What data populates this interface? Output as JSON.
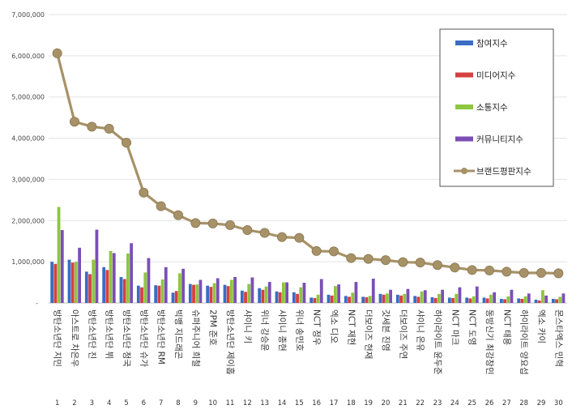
{
  "chart_data": {
    "type": "bar",
    "ylim": [
      0,
      7000000
    ],
    "y_ticks": [
      "-",
      "1,000,000",
      "2,000,000",
      "3,000,000",
      "4,000,000",
      "5,000,000",
      "6,000,000",
      "7,000,000"
    ],
    "grid": true,
    "legend_position": "top-right",
    "ranks": [
      "1",
      "2",
      "3",
      "4",
      "5",
      "6",
      "7",
      "8",
      "9",
      "10",
      "11",
      "12",
      "13",
      "14",
      "15",
      "16",
      "17",
      "18",
      "19",
      "20",
      "21",
      "22",
      "23",
      "24",
      "25",
      "26",
      "27",
      "28",
      "29",
      "30"
    ],
    "categories": [
      "방탄소년단 지민",
      "아스트로 차은우",
      "방탄소년단 진",
      "방탄소년단 뷔",
      "방탄소년단 정국",
      "방탄소년단 슈가",
      "방탄소년단 RM",
      "빅뱅 지드래곤",
      "슈퍼주니어 희철",
      "2PM 준호",
      "방탄소년단 제이홉",
      "샤이니 키",
      "위너 강승윤",
      "샤이니 종현",
      "위너 송민호",
      "NCT 정우",
      "엑소 디오",
      "NCT 재현",
      "더보이즈 현재",
      "갓세븐 진영",
      "더보이즈 주연",
      "샤이니 온유",
      "하이라이트 윤두준",
      "NCT 마크",
      "NCT 도영",
      "동방신기 최강창민",
      "NCT 태용",
      "하이라이트 양요섭",
      "엑소 카이",
      "몬스타엑스 민혁"
    ],
    "series": [
      {
        "name": "참여지수",
        "kind": "bar",
        "color": "#3a6cc4",
        "values": [
          1000000,
          1050000,
          760000,
          870000,
          630000,
          420000,
          430000,
          250000,
          460000,
          420000,
          440000,
          300000,
          360000,
          280000,
          260000,
          130000,
          200000,
          170000,
          150000,
          220000,
          200000,
          170000,
          140000,
          130000,
          130000,
          130000,
          100000,
          110000,
          80000,
          100000
        ]
      },
      {
        "name": "미디어지수",
        "kind": "bar",
        "color": "#d64040",
        "values": [
          950000,
          980000,
          700000,
          800000,
          580000,
          380000,
          420000,
          290000,
          440000,
          390000,
          410000,
          270000,
          320000,
          260000,
          220000,
          120000,
          180000,
          150000,
          140000,
          200000,
          180000,
          150000,
          120000,
          120000,
          110000,
          110000,
          90000,
          100000,
          60000,
          90000
        ]
      },
      {
        "name": "소통지수",
        "kind": "bar",
        "color": "#8dc63f",
        "values": [
          2330000,
          1000000,
          1050000,
          1260000,
          1200000,
          740000,
          570000,
          720000,
          450000,
          480000,
          560000,
          460000,
          400000,
          500000,
          380000,
          200000,
          410000,
          250000,
          170000,
          230000,
          220000,
          280000,
          220000,
          220000,
          160000,
          200000,
          160000,
          160000,
          310000,
          150000
        ]
      },
      {
        "name": "커뮤니티지수",
        "kind": "bar",
        "color": "#7b4fb5",
        "values": [
          1770000,
          1340000,
          1780000,
          1210000,
          1450000,
          1090000,
          870000,
          830000,
          560000,
          600000,
          630000,
          620000,
          510000,
          500000,
          490000,
          580000,
          450000,
          510000,
          590000,
          320000,
          340000,
          310000,
          320000,
          380000,
          400000,
          260000,
          320000,
          230000,
          180000,
          230000
        ]
      },
      {
        "name": "브랜드평판지수",
        "kind": "line",
        "color": "#a79268",
        "values": [
          6060000,
          4400000,
          4280000,
          4230000,
          3890000,
          2680000,
          2350000,
          2130000,
          1940000,
          1930000,
          1890000,
          1770000,
          1700000,
          1600000,
          1580000,
          1260000,
          1250000,
          1090000,
          1070000,
          1040000,
          990000,
          980000,
          920000,
          860000,
          800000,
          790000,
          760000,
          730000,
          730000,
          720000
        ]
      }
    ]
  }
}
